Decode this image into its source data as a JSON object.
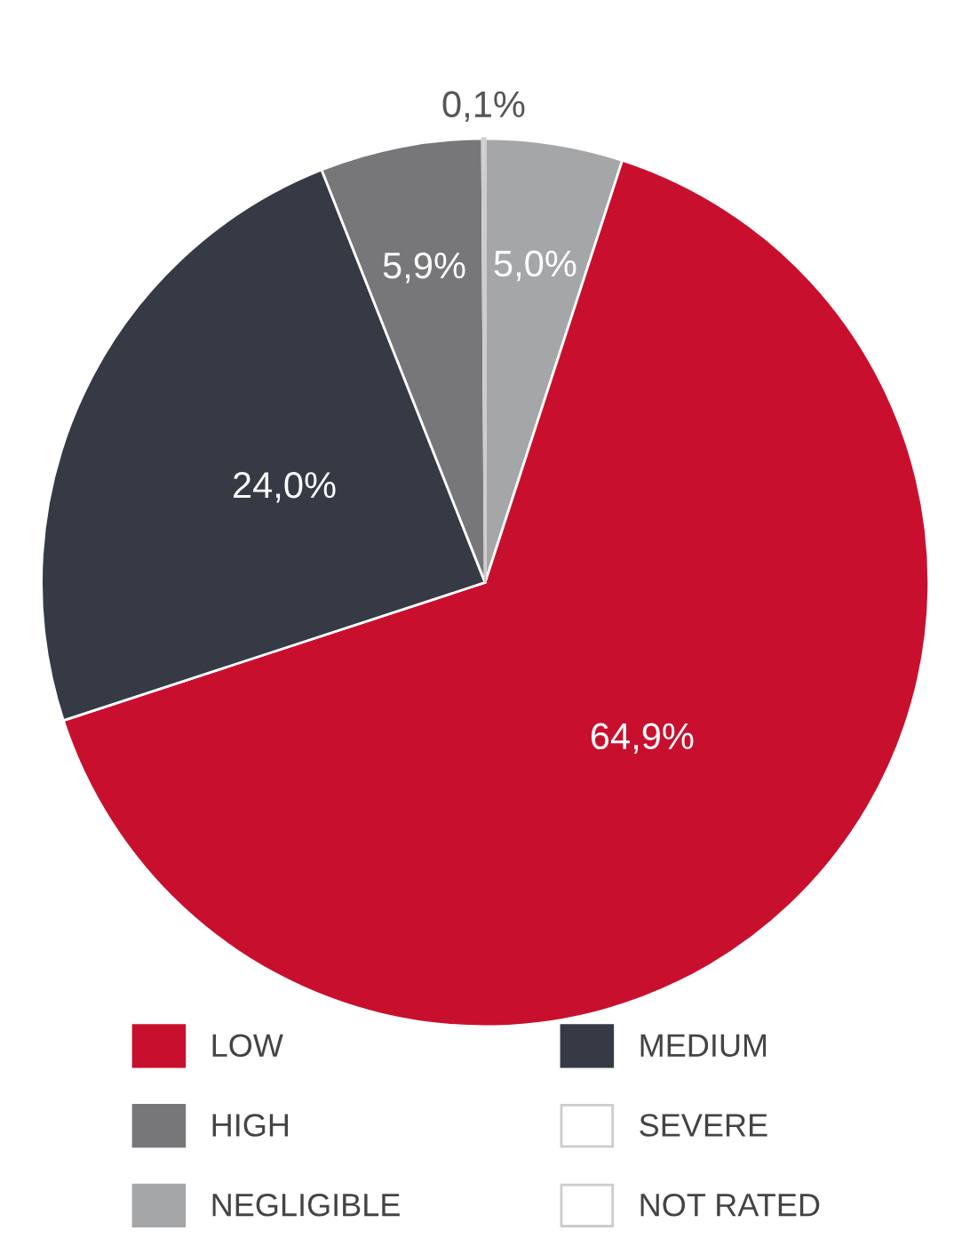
{
  "chart_data": {
    "type": "pie",
    "categories": [
      "NEGLIGIBLE",
      "LOW",
      "MEDIUM",
      "HIGH",
      "SEVERE",
      "NOT RATED"
    ],
    "values": [
      5.0,
      64.9,
      24.0,
      5.9,
      0.1,
      0
    ],
    "colors": [
      "#a5a6a8",
      "#c8102e",
      "#363a45",
      "#77777a",
      "#ffffff",
      "#ffffff"
    ],
    "value_labels": [
      "5,0%",
      "64,9%",
      "24,0%",
      "5,9%",
      "0,1%",
      null
    ],
    "legend": "bottom"
  }
}
